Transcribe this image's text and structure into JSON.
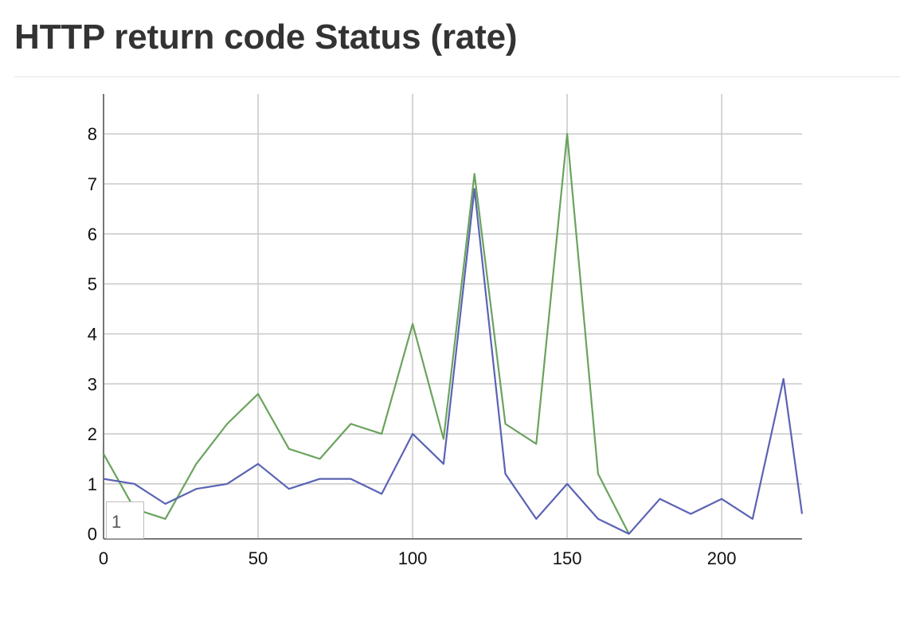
{
  "page": {
    "title": "HTTP return code Status (rate)"
  },
  "legend": {
    "text": "1"
  },
  "chart_data": {
    "type": "line",
    "title": "",
    "xlabel": "",
    "ylabel": "",
    "xlim": [
      0,
      226
    ],
    "ylim": [
      -0.1,
      8.8
    ],
    "x_ticks": [
      0,
      50,
      100,
      150,
      200
    ],
    "y_ticks": [
      0,
      1,
      2,
      3,
      4,
      5,
      6,
      7,
      8
    ],
    "grid": true,
    "series": [
      {
        "color": "#6aa35d",
        "x": [
          0,
          10,
          20,
          30,
          40,
          50,
          60,
          70,
          80,
          90,
          100,
          110,
          120,
          130,
          140,
          150,
          160,
          170
        ],
        "y": [
          1.6,
          0.5,
          0.3,
          1.4,
          2.2,
          2.8,
          1.7,
          1.5,
          2.2,
          2.0,
          4.2,
          1.9,
          7.2,
          2.2,
          1.8,
          8.0,
          1.2,
          0.0
        ]
      },
      {
        "color": "#5a63b4",
        "x": [
          0,
          10,
          20,
          30,
          40,
          50,
          60,
          70,
          80,
          90,
          100,
          110,
          120,
          130,
          140,
          150,
          160,
          170,
          180,
          190,
          200,
          210,
          220,
          226
        ],
        "y": [
          1.1,
          1.0,
          0.6,
          0.9,
          1.0,
          1.4,
          0.9,
          1.1,
          1.1,
          0.8,
          2.0,
          1.4,
          6.9,
          1.2,
          0.3,
          1.0,
          0.3,
          0.0,
          0.7,
          0.4,
          0.7,
          0.3,
          3.1,
          0.4
        ]
      }
    ]
  }
}
